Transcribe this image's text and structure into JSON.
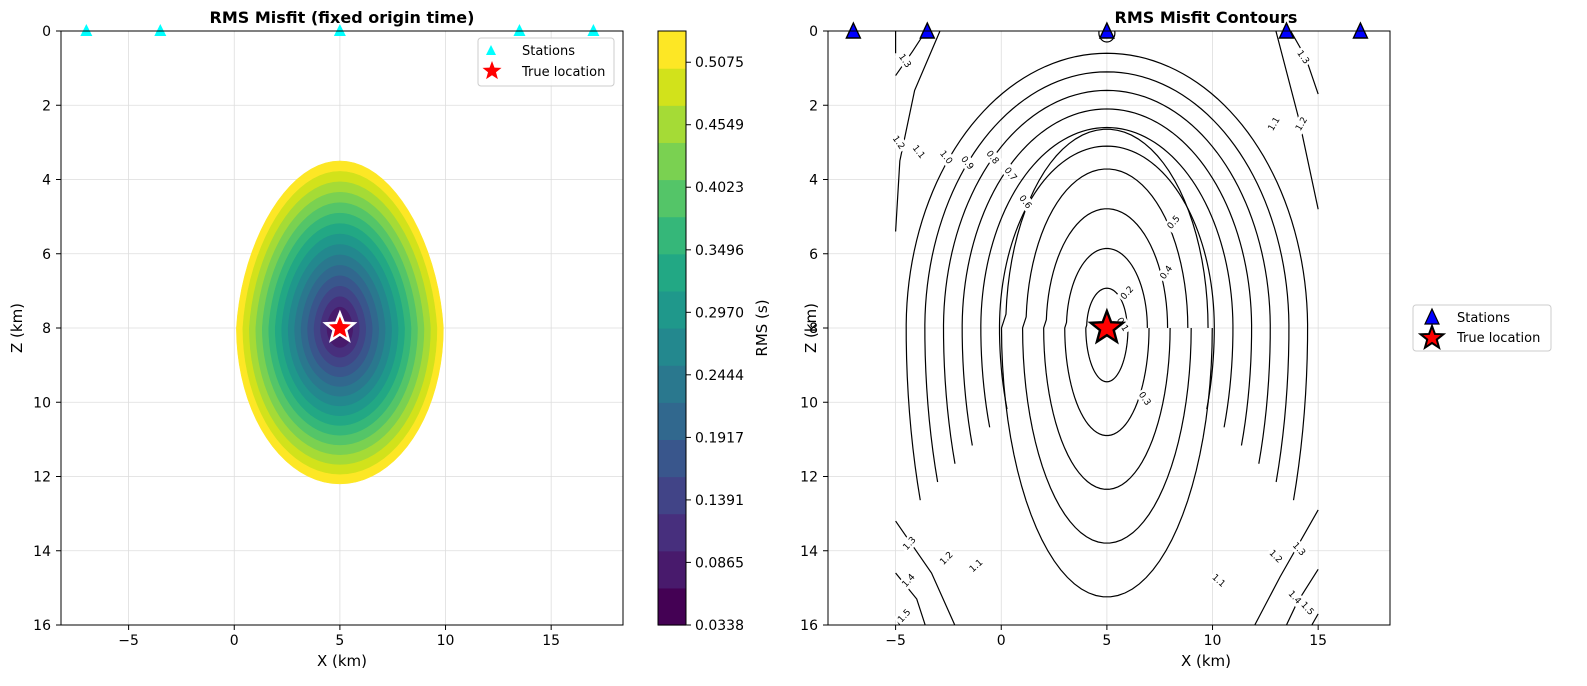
{
  "colors": {
    "viridis": [
      "#440154",
      "#481a6c",
      "#472f7d",
      "#414487",
      "#39568c",
      "#31688e",
      "#2a788e",
      "#23888e",
      "#1f988b",
      "#22a884",
      "#35b779",
      "#54c568",
      "#7ad151",
      "#a5db36",
      "#d2e21b",
      "#fde725"
    ],
    "station_left": "#00ffff",
    "station_right": "#0000ff",
    "star": "#ff0000",
    "contour": "#000000",
    "grid": "#dddddd"
  },
  "chart_data": [
    {
      "type": "heatmap",
      "title": "RMS Misfit (fixed origin time)",
      "xlabel": "X (km)",
      "ylabel": "Z (km)",
      "xlim": [
        -8.2,
        18.4
      ],
      "ylim": [
        16,
        0
      ],
      "xticks": [
        "−5",
        "0",
        "5",
        "10",
        "15"
      ],
      "xtick_values": [
        -5,
        0,
        5,
        10,
        15
      ],
      "yticks": [
        "0",
        "2",
        "4",
        "6",
        "8",
        "10",
        "12",
        "14",
        "16"
      ],
      "ytick_values": [
        0,
        2,
        4,
        6,
        8,
        10,
        12,
        14,
        16
      ],
      "grid": true,
      "stations": {
        "x": [
          -7,
          -3.5,
          5,
          13.5,
          17
        ],
        "z": [
          0,
          0,
          0,
          0,
          0
        ]
      },
      "true_location": {
        "x": 5,
        "z": 8
      },
      "legend": {
        "position": "top-right",
        "entries": [
          "Stations",
          "True location"
        ]
      },
      "misfit_region": {
        "center_x": 5,
        "top_z": 3.5,
        "bottom_z": 12.2,
        "half_width_km": 4.9,
        "min_rms": 0.0338,
        "max_rms": 0.5338
      },
      "colorbar": {
        "label": "RMS (s)",
        "min": 0.0338,
        "max": 0.5338,
        "ticks": [
          "0.0338",
          "0.0865",
          "0.1391",
          "0.1917",
          "0.2444",
          "0.2970",
          "0.3496",
          "0.4023",
          "0.4549",
          "0.5075"
        ],
        "tick_values": [
          0.0338,
          0.0865,
          0.1391,
          0.1917,
          0.2444,
          0.297,
          0.3496,
          0.4023,
          0.4549,
          0.5075
        ]
      }
    },
    {
      "type": "contour",
      "title": "RMS Misfit Contours",
      "xlabel": "X (km)",
      "ylabel": "Z (km)",
      "xlim": [
        -8.2,
        18.4
      ],
      "ylim": [
        16,
        0
      ],
      "xticks": [
        "−5",
        "0",
        "5",
        "10",
        "15"
      ],
      "xtick_values": [
        -5,
        0,
        5,
        10,
        15
      ],
      "yticks": [
        "0",
        "2",
        "4",
        "6",
        "8",
        "10",
        "12",
        "14",
        "16"
      ],
      "ytick_values": [
        0,
        2,
        4,
        6,
        8,
        10,
        12,
        14,
        16
      ],
      "grid": true,
      "domain": {
        "x": [
          -5,
          15
        ],
        "z": [
          0,
          16
        ]
      },
      "stations": {
        "x": [
          -7,
          -3.5,
          5,
          13.5,
          17
        ],
        "z": [
          0,
          0,
          0,
          0,
          0
        ]
      },
      "true_location": {
        "x": 5,
        "z": 8
      },
      "legend": {
        "position": "center-right",
        "entries": [
          "Stations",
          "True location"
        ]
      },
      "contour_levels": [
        0.1,
        0.2,
        0.3,
        0.4,
        0.5,
        0.6,
        0.7,
        0.8,
        0.9,
        1.0,
        1.1,
        1.2,
        1.3,
        1.4,
        1.5
      ],
      "contour_labels": [
        {
          "text": "0.1",
          "x": 5.75,
          "z": 7.9,
          "angle": 60
        },
        {
          "text": "0.2",
          "x": 5.95,
          "z": 7.05,
          "angle": -48
        },
        {
          "text": "0.3",
          "x": 6.8,
          "z": 9.9,
          "angle": 55
        },
        {
          "text": "0.4",
          "x": 7.8,
          "z": 6.5,
          "angle": -55
        },
        {
          "text": "0.5",
          "x": 8.15,
          "z": 5.15,
          "angle": -50
        },
        {
          "text": "0.6",
          "x": 1.15,
          "z": 4.6,
          "angle": 52
        },
        {
          "text": "0.7",
          "x": 0.45,
          "z": 3.85,
          "angle": 52
        },
        {
          "text": "0.8",
          "x": -0.4,
          "z": 3.4,
          "angle": 52
        },
        {
          "text": "0.9",
          "x": -1.6,
          "z": 3.55,
          "angle": 52
        },
        {
          "text": "1.0",
          "x": -2.6,
          "z": 3.4,
          "angle": 52
        },
        {
          "text": "1.1",
          "x": -3.9,
          "z": 3.25,
          "angle": 52
        },
        {
          "text": "1.2",
          "x": -4.85,
          "z": 3.0,
          "angle": 55
        },
        {
          "text": "1.3",
          "x": -4.55,
          "z": 0.8,
          "angle": 55
        },
        {
          "text": "1.3",
          "x": 14.3,
          "z": 0.7,
          "angle": 55
        },
        {
          "text": "1.1",
          "x": 12.9,
          "z": 2.5,
          "angle": -60
        },
        {
          "text": "1.2",
          "x": 14.2,
          "z": 2.5,
          "angle": -60
        },
        {
          "text": "1.3",
          "x": -4.35,
          "z": 13.8,
          "angle": -48
        },
        {
          "text": "1.4",
          "x": -4.4,
          "z": 14.8,
          "angle": -48
        },
        {
          "text": "1.5",
          "x": -4.6,
          "z": 15.75,
          "angle": -48
        },
        {
          "text": "1.2",
          "x": -2.6,
          "z": 14.2,
          "angle": -45
        },
        {
          "text": "1.1",
          "x": -1.2,
          "z": 14.4,
          "angle": -42
        },
        {
          "text": "1.1",
          "x": 10.3,
          "z": 14.8,
          "angle": 42
        },
        {
          "text": "1.2",
          "x": 13.0,
          "z": 14.15,
          "angle": 45
        },
        {
          "text": "1.3",
          "x": 14.1,
          "z": 13.95,
          "angle": 48
        },
        {
          "text": "1.4",
          "x": 13.9,
          "z": 15.25,
          "angle": 48
        },
        {
          "text": "1.5",
          "x": 14.5,
          "z": 15.55,
          "angle": 48
        }
      ]
    }
  ]
}
